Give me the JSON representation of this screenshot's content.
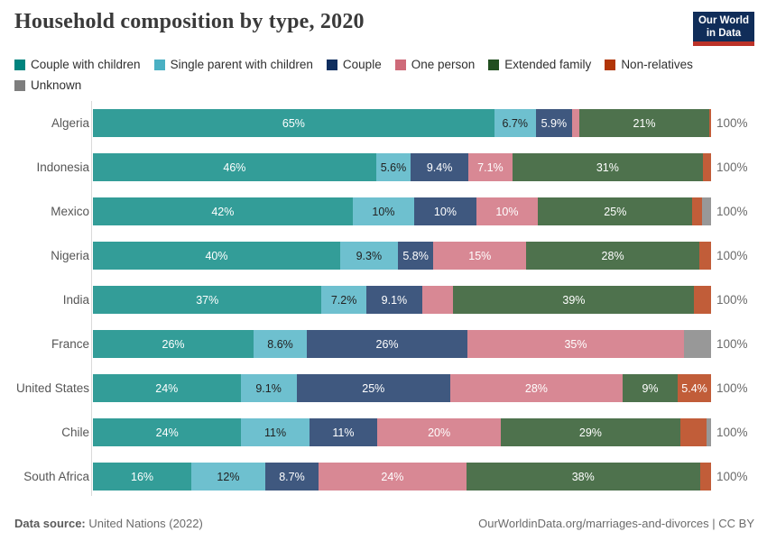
{
  "header": {
    "title": "Household composition by type, 2020",
    "logo": {
      "line1": "Our World",
      "line2": "in Data"
    }
  },
  "chart_data": {
    "type": "bar",
    "orientation": "horizontal",
    "stacked": true,
    "unit": "%",
    "x_range": [
      0,
      100
    ],
    "title": "Household composition by type, 2020",
    "series": [
      {
        "name": "Couple with children",
        "color": "#00847E",
        "label_color": "#ffffff"
      },
      {
        "name": "Single parent with children",
        "color": "#4AB0C3",
        "label_color": "#222222"
      },
      {
        "name": "Couple",
        "color": "#0F2E5F",
        "label_color": "#ffffff"
      },
      {
        "name": "One person",
        "color": "#CE6A79",
        "label_color": "#ffffff"
      },
      {
        "name": "Extended family",
        "color": "#224F20",
        "label_color": "#ffffff"
      },
      {
        "name": "Non-relatives",
        "color": "#B13507",
        "label_color": "#ffffff"
      },
      {
        "name": "Unknown",
        "color": "#7E7E7E",
        "label_color": "#ffffff"
      }
    ],
    "bar_fill_opacity": 0.8,
    "rows": [
      {
        "country": "Algeria",
        "values": [
          65,
          6.7,
          5.9,
          1.2,
          21,
          0.3,
          0
        ],
        "labels": [
          "65%",
          "6.7%",
          "5.9%",
          null,
          "21%",
          null,
          null
        ],
        "total_label": "100%"
      },
      {
        "country": "Indonesia",
        "values": [
          46,
          5.6,
          9.4,
          7.1,
          31,
          1.3,
          0
        ],
        "labels": [
          "46%",
          "5.6%",
          "9.4%",
          "7.1%",
          "31%",
          null,
          null
        ],
        "total_label": "100%"
      },
      {
        "country": "Mexico",
        "values": [
          42,
          10,
          10,
          10,
          25,
          1.6,
          1.4
        ],
        "labels": [
          "42%",
          "10%",
          "10%",
          "10%",
          "25%",
          null,
          null
        ],
        "total_label": "100%"
      },
      {
        "country": "Nigeria",
        "values": [
          40,
          9.3,
          5.8,
          15,
          28,
          1.9,
          0
        ],
        "labels": [
          "40%",
          "9.3%",
          "5.8%",
          "15%",
          "28%",
          null,
          null
        ],
        "total_label": "100%"
      },
      {
        "country": "India",
        "values": [
          37,
          7.2,
          9.1,
          5.0,
          39,
          2.7,
          0
        ],
        "labels": [
          "37%",
          "7.2%",
          "9.1%",
          null,
          "39%",
          null,
          null
        ],
        "total_label": "100%"
      },
      {
        "country": "France",
        "values": [
          26,
          8.6,
          26,
          35,
          0,
          0,
          4.4
        ],
        "labels": [
          "26%",
          "8.6%",
          "26%",
          "35%",
          null,
          null,
          null
        ],
        "total_label": "100%"
      },
      {
        "country": "United States",
        "values": [
          24,
          9.1,
          25,
          28,
          9,
          5.4,
          0
        ],
        "labels": [
          "24%",
          "9.1%",
          "25%",
          "28%",
          "9%",
          "5.4%",
          null
        ],
        "total_label": "100%"
      },
      {
        "country": "Chile",
        "values": [
          24,
          11,
          11,
          20,
          29,
          4.3,
          0.7
        ],
        "labels": [
          "24%",
          "11%",
          "11%",
          "20%",
          "29%",
          null,
          null
        ],
        "total_label": "100%"
      },
      {
        "country": "South Africa",
        "values": [
          16,
          12,
          8.7,
          24,
          38,
          1.8,
          0
        ],
        "labels": [
          "16%",
          "12%",
          "8.7%",
          "24%",
          "38%",
          null,
          null
        ],
        "total_label": "100%"
      }
    ]
  },
  "footer": {
    "source_label": "Data source:",
    "source_text": " United Nations (2022)",
    "link_text": "OurWorldinData.org/marriages-and-divorces | CC BY"
  }
}
